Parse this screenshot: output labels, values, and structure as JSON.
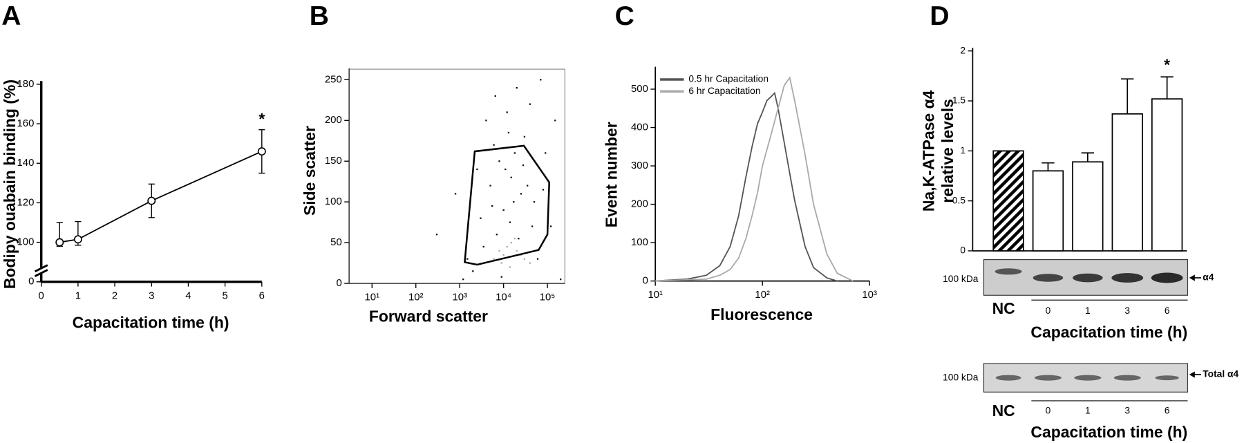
{
  "chart_data": [
    {
      "type": "line",
      "panel": "A",
      "xlabel": "Capacitation time (h)",
      "ylabel": "Bodipy ouabain binding (%)",
      "x": [
        0.5,
        1,
        3,
        6
      ],
      "series": [
        {
          "color": "#000000",
          "marker": "open-circle",
          "values": [
            100,
            101.5,
            121,
            146
          ],
          "errors": [
            10,
            9,
            8.5,
            11
          ]
        }
      ],
      "star_label": "*",
      "starred": [
        false,
        false,
        false,
        true
      ],
      "xlim": [
        0,
        6
      ],
      "xticks": [
        0,
        1,
        2,
        3,
        4,
        5,
        6
      ],
      "ylim": [
        0,
        180
      ],
      "yticks": [
        0,
        100,
        120,
        140,
        160,
        180
      ],
      "ybreak": true
    },
    {
      "type": "scatter",
      "panel": "B",
      "xlabel": "Forward scatter",
      "ylabel": "Side scatter",
      "xscale": "log",
      "series": [
        {
          "color": "#111111",
          "x": [
            300,
            800,
            1500,
            2500,
            3000,
            4000,
            5000,
            6000,
            8000,
            10000,
            12000,
            15000,
            20000,
            25000,
            30000,
            40000,
            50000,
            70000,
            90000,
            150000,
            2000,
            3500,
            7000,
            9000,
            11000,
            14000,
            18000,
            22000,
            35000,
            60000,
            120000,
            200000,
            1200,
            5500,
            6500,
            13000,
            17000,
            28000,
            45000,
            80000
          ],
          "y": [
            60,
            110,
            30,
            140,
            80,
            200,
            120,
            170,
            150,
            90,
            210,
            130,
            240,
            110,
            180,
            220,
            100,
            250,
            160,
            200,
            15,
            45,
            60,
            8,
            140,
            75,
            160,
            55,
            120,
            30,
            70,
            5,
            5,
            95,
            230,
            185,
            100,
            145,
            70,
            115
          ]
        },
        {
          "color": "#aaaaaa",
          "x": [
            6000,
            8000,
            10000,
            12000,
            15000,
            20000,
            25000,
            30000,
            40000,
            9000,
            14000,
            18000
          ],
          "y": [
            30,
            40,
            35,
            45,
            50,
            40,
            35,
            30,
            25,
            25,
            20,
            55
          ]
        }
      ],
      "gate": {
        "color": "#000000",
        "x": [
          2200,
          29000,
          110000,
          100000,
          63000,
          2500,
          1300
        ],
        "y": [
          162,
          169,
          124,
          60,
          41,
          23,
          26
        ]
      },
      "xlim": [
        3,
        250000
      ],
      "xticks": [
        {
          "value": 10,
          "label": "10¹"
        },
        {
          "value": 100,
          "label": "10²"
        },
        {
          "value": 1000,
          "label": "10³"
        },
        {
          "value": 10000,
          "label": "10⁴"
        },
        {
          "value": 100000,
          "label": "10⁵"
        }
      ],
      "ylim": [
        0,
        260
      ],
      "yticks": [
        0,
        50,
        100,
        150,
        200,
        250
      ]
    },
    {
      "type": "line",
      "panel": "C",
      "xlabel": "Fluorescence",
      "ylabel": "Event number",
      "xscale": "log",
      "legend": "top-left",
      "series": [
        {
          "name": "0.5 hr Capacitation",
          "color": "#555555",
          "x": [
            10,
            20,
            30,
            40,
            50,
            60,
            70,
            80,
            90,
            100,
            110,
            120,
            130,
            140,
            160,
            180,
            200,
            250,
            300,
            400,
            500
          ],
          "values": [
            0,
            5,
            15,
            40,
            90,
            170,
            270,
            350,
            410,
            440,
            470,
            480,
            490,
            450,
            360,
            280,
            210,
            90,
            35,
            8,
            0
          ]
        },
        {
          "name": "6 hr Capacitation",
          "color": "#aaaaaa",
          "x": [
            10,
            30,
            40,
            50,
            60,
            70,
            80,
            90,
            100,
            120,
            140,
            160,
            180,
            200,
            250,
            300,
            400,
            500,
            700
          ],
          "values": [
            0,
            5,
            15,
            30,
            60,
            110,
            170,
            230,
            300,
            380,
            450,
            510,
            530,
            470,
            330,
            200,
            70,
            20,
            0
          ]
        }
      ],
      "xlim": [
        10,
        1000
      ],
      "xticks": [
        {
          "value": 10,
          "label": "10¹"
        },
        {
          "value": 100,
          "label": "10²"
        },
        {
          "value": 1000,
          "label": "10³"
        }
      ],
      "ylim": [
        0,
        550
      ],
      "yticks": [
        0,
        100,
        200,
        300,
        400,
        500
      ]
    },
    {
      "type": "bar",
      "panel": "D",
      "ylabel": [
        "Na,K-ATPase α4",
        "relative levels"
      ],
      "categories": [
        "NC",
        "0",
        "1",
        "3",
        "6"
      ],
      "values": [
        1.0,
        0.8,
        0.89,
        1.37,
        1.52
      ],
      "errors": [
        0,
        0.08,
        0.09,
        0.35,
        0.22
      ],
      "hatch": [
        true,
        false,
        false,
        false,
        false
      ],
      "color": "#ffffff",
      "star_label": "*",
      "starred": [
        false,
        false,
        false,
        false,
        true
      ],
      "ylim": [
        0,
        2
      ],
      "yticks": [
        0,
        0.5,
        1,
        1.5,
        2
      ],
      "blots": [
        {
          "marker_label": "100 kDa",
          "band_label": "α4",
          "xlabel": "Capacitation time (h)"
        },
        {
          "marker_label": "100 kDa",
          "band_label": "Total α4",
          "lanes": [
            "NC",
            "0",
            "1",
            "3",
            "6"
          ],
          "xlabel": "Capacitation time (h)"
        }
      ]
    }
  ]
}
